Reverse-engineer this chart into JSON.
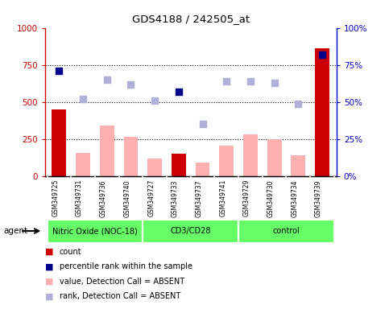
{
  "title": "GDS4188 / 242505_at",
  "samples": [
    "GSM349725",
    "GSM349731",
    "GSM349736",
    "GSM349740",
    "GSM349727",
    "GSM349733",
    "GSM349737",
    "GSM349741",
    "GSM349729",
    "GSM349730",
    "GSM349734",
    "GSM349739"
  ],
  "groups": [
    {
      "name": "Nitric Oxide (NOC-18)",
      "span": [
        0,
        4
      ],
      "color": "#66ff66"
    },
    {
      "name": "CD3/CD28",
      "span": [
        4,
        8
      ],
      "color": "#66ff66"
    },
    {
      "name": "control",
      "span": [
        8,
        12
      ],
      "color": "#66ff66"
    }
  ],
  "bar_present_values": [
    450,
    null,
    null,
    null,
    null,
    150,
    null,
    null,
    null,
    null,
    null,
    860
  ],
  "bar_absent_values": [
    null,
    155,
    340,
    265,
    120,
    null,
    90,
    205,
    280,
    250,
    140,
    null
  ],
  "bar_colors_present": "#cc0000",
  "bar_colors_absent": "#ffb0b0",
  "percentile_present": [
    710,
    null,
    null,
    null,
    null,
    570,
    null,
    null,
    null,
    null,
    null,
    820
  ],
  "percentile_absent": [
    null,
    520,
    650,
    620,
    510,
    null,
    350,
    640,
    640,
    630,
    490,
    null
  ],
  "percentile_color_present": "#00008b",
  "percentile_color_absent": "#b0b0d8",
  "ylim_left": [
    0,
    1000
  ],
  "ylim_right": [
    0,
    100
  ],
  "yticks_left": [
    0,
    250,
    500,
    750,
    1000
  ],
  "yticks_right": [
    0,
    25,
    50,
    75,
    100
  ],
  "grid_values": [
    250,
    500,
    750
  ],
  "legend": [
    {
      "label": "count",
      "color": "#cc0000"
    },
    {
      "label": "percentile rank within the sample",
      "color": "#00008b"
    },
    {
      "label": "value, Detection Call = ABSENT",
      "color": "#ffb0b0"
    },
    {
      "label": "rank, Detection Call = ABSENT",
      "color": "#b0b0d8"
    }
  ],
  "bg_color": "#ffffff",
  "axis_color_left": "#cc0000",
  "axis_color_right": "#0000cc",
  "sample_bg": "#d3d3d3",
  "bar_width": 0.6
}
